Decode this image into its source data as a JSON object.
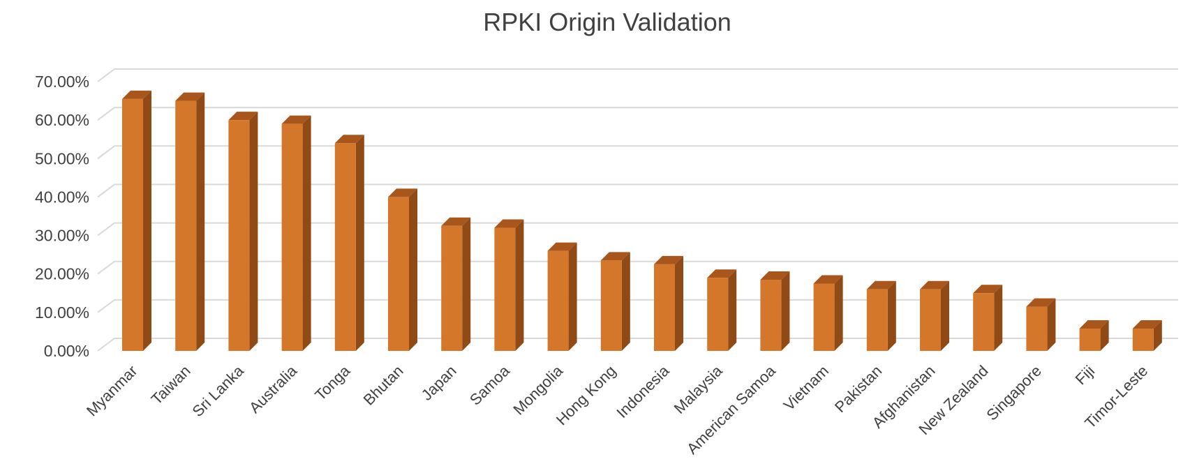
{
  "chart_data": {
    "type": "bar",
    "title": "RPKI Origin Validation",
    "xlabel": "",
    "ylabel": "",
    "ylim": [
      0,
      70
    ],
    "yticks": [
      "0.00%",
      "10.00%",
      "20.00%",
      "30.00%",
      "40.00%",
      "50.00%",
      "60.00%",
      "70.00%"
    ],
    "categories": [
      "Myanmar",
      "Taiwan",
      "Sri Lanka",
      "Australia",
      "Tonga",
      "Bhutan",
      "Japan",
      "Samoa",
      "Mongolia",
      "Hong Kong",
      "Indonesia",
      "Malaysia",
      "American Samoa",
      "Vietnam",
      "Pakistan",
      "Afghanistan",
      "New Zealand",
      "Singapore",
      "Fiji",
      "Timor-Leste"
    ],
    "values": [
      65.5,
      65.0,
      60.0,
      59.0,
      54.0,
      40.0,
      32.5,
      32.0,
      26.0,
      23.5,
      22.5,
      19.0,
      18.5,
      17.5,
      16.0,
      16.0,
      15.0,
      11.5,
      5.8,
      5.8
    ],
    "grid": true,
    "legend": "none",
    "colors": {
      "bar_front": "#d4772a",
      "bar_side": "#8f4a16",
      "bar_top": "#a8561c",
      "grid": "#d9d9d9",
      "text": "#404040"
    }
  }
}
